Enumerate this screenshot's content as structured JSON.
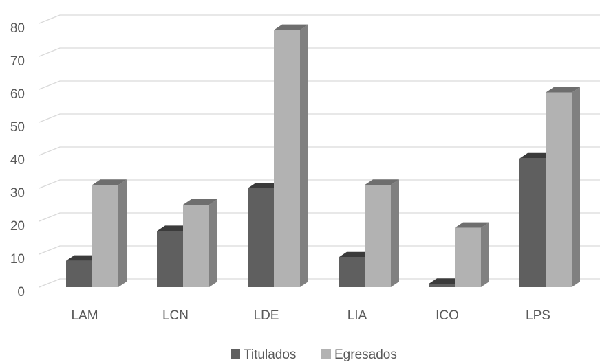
{
  "chart_data": {
    "type": "bar",
    "style": "3d-clustered-column",
    "categories": [
      "LAM",
      "LCN",
      "LDE",
      "LIA",
      "ICO",
      "LPS"
    ],
    "series": [
      {
        "name": "Titulados",
        "values": [
          8,
          17,
          30,
          9,
          1,
          39
        ],
        "color": "#5f5f5f"
      },
      {
        "name": "Egresados",
        "values": [
          31,
          25,
          78,
          31,
          18,
          59
        ],
        "color": "#b2b2b2"
      }
    ],
    "yticks": [
      0,
      10,
      20,
      30,
      40,
      50,
      60,
      70,
      80
    ],
    "ylim": [
      0,
      80
    ],
    "grid": true,
    "legend": "bottom"
  }
}
